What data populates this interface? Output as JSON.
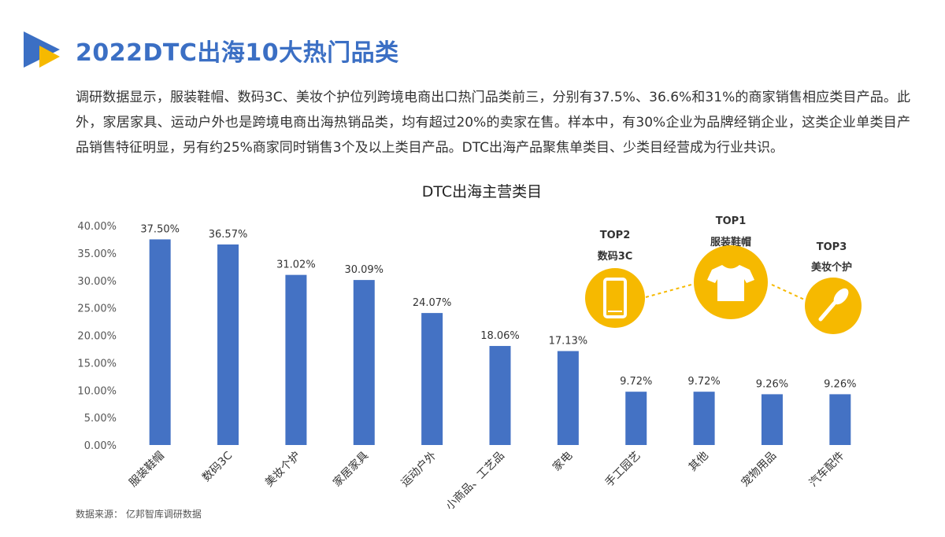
{
  "header": {
    "title": "2022DTC出海10大热门品类",
    "logo_colors": [
      "#3b6fc4",
      "#f6b900"
    ]
  },
  "intro": "调研数据显示，服装鞋帽、数码3C、美妆个护位列跨境电商出口热门品类前三，分别有37.5%、36.6%和31%的商家销售相应类目产品。此外，家居家具、运动户外也是跨境电商出海热销品类，均有超过20%的卖家在售。样本中，有30%企业为品牌经销企业，这类企业单类目产品销售特征明显，另有约25%商家同时销售3个及以上类目产品。DTC出海产品聚焦单类目、少类目经营成为行业共识。",
  "chart_data": {
    "type": "bar",
    "title": "DTC出海主营类目",
    "categories": [
      "服装鞋帽",
      "数码3C",
      "美妆个护",
      "家居家具",
      "运动户外",
      "小商品、工艺品",
      "家电",
      "手工园艺",
      "其他",
      "宠物用品",
      "汽车配件"
    ],
    "values": [
      37.5,
      36.57,
      31.02,
      30.09,
      24.07,
      18.06,
      17.13,
      9.72,
      9.72,
      9.26,
      9.26
    ],
    "value_labels": [
      "37.50%",
      "36.57%",
      "31.02%",
      "30.09%",
      "24.07%",
      "18.06%",
      "17.13%",
      "9.72%",
      "9.72%",
      "9.26%",
      "9.26%"
    ],
    "y_ticks": [
      "0.00%",
      "5.00%",
      "10.00%",
      "15.00%",
      "20.00%",
      "25.00%",
      "30.00%",
      "35.00%",
      "40.00%"
    ],
    "ylim": [
      0,
      40
    ],
    "grid": false,
    "bar_color": "#4472c4"
  },
  "top3": [
    {
      "rank": "TOP2",
      "name": "数码3C",
      "icon": "phone-icon"
    },
    {
      "rank": "TOP1",
      "name": "服装鞋帽",
      "icon": "tshirt-icon"
    },
    {
      "rank": "TOP3",
      "name": "美妆个护",
      "icon": "makeup-brush-icon"
    }
  ],
  "top3_color": "#f6b900",
  "source": "数据来源： 亿邦智库调研数据"
}
